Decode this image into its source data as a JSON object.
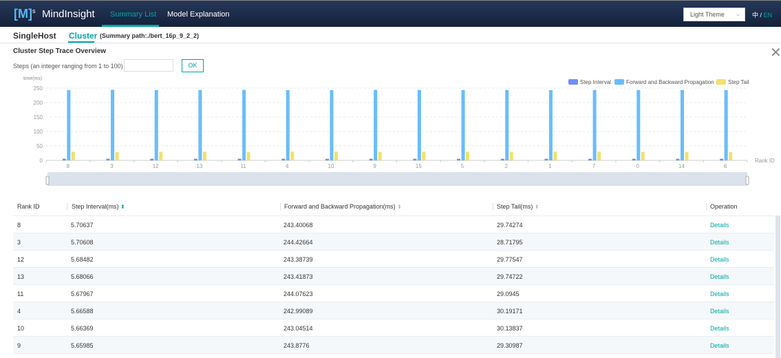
{
  "header": {
    "logo": "[M]",
    "logo_sup": "s",
    "app_name": "MindInsight",
    "nav": [
      "Summary List",
      "Model Explanation"
    ],
    "theme": "Light Theme",
    "lang_zh": "中",
    "lang_sep": "/",
    "lang_en": "EN"
  },
  "subtabs": {
    "single": "SingleHost",
    "cluster": "Cluster",
    "path": "(Summary path:./bert_16p_9_2_2)"
  },
  "panel": {
    "title": "Cluster Step Trace Overview",
    "steps_label": "Steps (an integer ranging from 1 to 100)",
    "steps_value": "",
    "ok": "OK"
  },
  "colors": {
    "accent": "#00a5a7",
    "step_interval": "#6e8ff8",
    "fp_bp": "#68bdfc",
    "step_tail": "#f4e06a"
  },
  "chart_data": {
    "type": "bar",
    "ylabel": "time(ms)",
    "xlabel": "Rank ID",
    "ylim": [
      0,
      250
    ],
    "yticks": [
      0,
      50,
      100,
      150,
      200,
      250
    ],
    "grid": true,
    "legend": "top-right",
    "categories": [
      "8",
      "3",
      "12",
      "13",
      "11",
      "4",
      "10",
      "9",
      "15",
      "5",
      "2",
      "1",
      "7",
      "0",
      "14",
      "6"
    ],
    "series": [
      {
        "name": "Step Interval",
        "values": [
          5.71,
          5.71,
          5.68,
          5.68,
          5.68,
          5.67,
          5.66,
          5.66,
          5.65,
          5.64,
          5.63,
          5.62,
          5.61,
          5.6,
          5.59,
          5.58
        ]
      },
      {
        "name": "Forward and Backward Propagation",
        "values": [
          243.4,
          244.43,
          243.39,
          243.42,
          244.08,
          242.99,
          243.05,
          243.88,
          243.6,
          243.3,
          243.5,
          243.2,
          243.7,
          243.4,
          243.6,
          243.5
        ]
      },
      {
        "name": "Step Tail",
        "values": [
          29.74,
          28.72,
          29.78,
          29.75,
          29.09,
          30.19,
          30.14,
          29.31,
          29.5,
          29.8,
          29.6,
          29.9,
          29.7,
          29.8,
          29.2,
          28.9
        ]
      }
    ]
  },
  "table": {
    "headers": [
      "Rank ID",
      "Step Interval(ms)",
      "Forward and Backward Propagation(ms)",
      "Step Tail(ms)",
      "Operation"
    ],
    "rows": [
      [
        "8",
        "5.70637",
        "243.40068",
        "29.74274",
        "Details"
      ],
      [
        "3",
        "5.70608",
        "244.42664",
        "28.71795",
        "Details"
      ],
      [
        "12",
        "5.68482",
        "243.38739",
        "29.77547",
        "Details"
      ],
      [
        "13",
        "5.68066",
        "243.41873",
        "29.74722",
        "Details"
      ],
      [
        "11",
        "5.67967",
        "244.07623",
        "29.0945",
        "Details"
      ],
      [
        "4",
        "5.66588",
        "242.99089",
        "30.19171",
        "Details"
      ],
      [
        "10",
        "5.66369",
        "243.04514",
        "30.13837",
        "Details"
      ],
      [
        "9",
        "5.65985",
        "243.8776",
        "29.30987",
        "Details"
      ]
    ]
  }
}
